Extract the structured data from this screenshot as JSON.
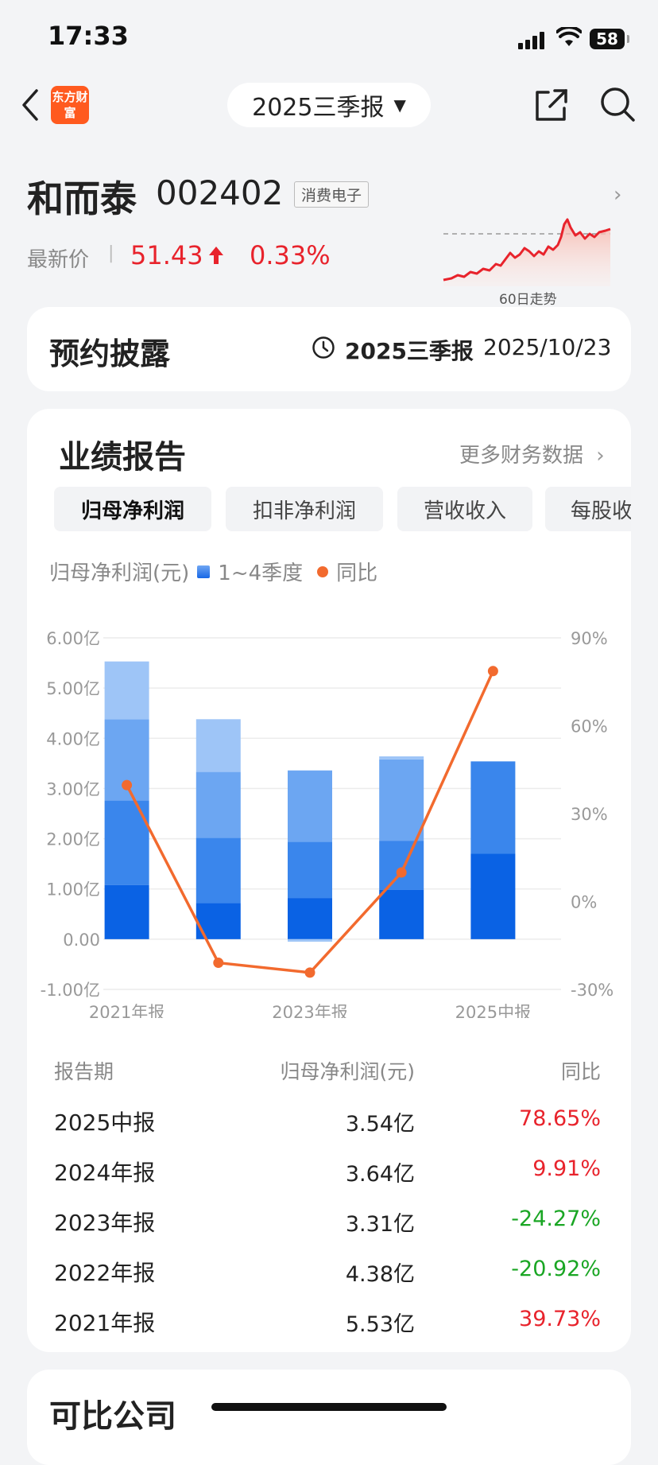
{
  "status_bar": {
    "time": "17:33",
    "battery": "58"
  },
  "nav": {
    "logo_text": "东方财富",
    "period_selector": "2025三季报"
  },
  "stock": {
    "name": "和而泰",
    "code": "002402",
    "sector": "消费电子",
    "latest_label": "最新价",
    "price": "51.43",
    "change_pct": "0.33%",
    "trend_label": "60日走势"
  },
  "disclosure": {
    "title": "预约披露",
    "period": "2025三季报",
    "date": "2025/10/23"
  },
  "performance": {
    "title": "业绩报告",
    "more_link": "更多财务数据",
    "tabs": [
      "归母净利润",
      "扣非净利润",
      "营收收入",
      "每股收益"
    ],
    "legend": {
      "metric": "归母净利润(元)",
      "bars": "1~4季度",
      "line": "同比"
    }
  },
  "chart_data": {
    "type": "bar",
    "categories": [
      "2021年报",
      "2022年报",
      "2023年报",
      "2024年报",
      "2025中报"
    ],
    "x_tick_labels": [
      "2021年报",
      "2023年报",
      "2025中报"
    ],
    "stacked": true,
    "series": [
      {
        "name": "Q1",
        "values": [
          1.08,
          0.72,
          0.82,
          0.98,
          1.7
        ]
      },
      {
        "name": "Q2",
        "values": [
          1.68,
          1.3,
          1.12,
          0.98,
          1.84
        ]
      },
      {
        "name": "Q3",
        "values": [
          1.62,
          1.31,
          1.42,
          1.62,
          0
        ]
      },
      {
        "name": "Q4",
        "values": [
          1.15,
          1.05,
          -0.05,
          0.06,
          0
        ]
      },
      {
        "name": "同比",
        "type": "line",
        "axis": "right",
        "values": [
          39.73,
          -20.92,
          -24.27,
          9.91,
          78.65
        ]
      }
    ],
    "y_left_ticks": [
      "6.00亿",
      "5.00亿",
      "4.00亿",
      "3.00亿",
      "2.00亿",
      "1.00亿",
      "0.00",
      "-1.00亿"
    ],
    "y_right_ticks": [
      "90%",
      "60%",
      "30%",
      "0%",
      "-30%"
    ],
    "ylim": [
      -1,
      6
    ],
    "y2lim": [
      -30,
      90
    ],
    "colors": {
      "q1": "#0a62e4",
      "q2": "#3a86ec",
      "q3": "#6ca6f2",
      "q4": "#9ec5f7",
      "line": "#f26a2e"
    }
  },
  "table": {
    "headers": {
      "period": "报告期",
      "value": "归母净利润(元)",
      "yoy": "同比"
    },
    "rows": [
      {
        "period": "2025中报",
        "value": "3.54亿",
        "yoy": "78.65%",
        "dir": "pos"
      },
      {
        "period": "2024年报",
        "value": "3.64亿",
        "yoy": "9.91%",
        "dir": "pos"
      },
      {
        "period": "2023年报",
        "value": "3.31亿",
        "yoy": "-24.27%",
        "dir": "neg"
      },
      {
        "period": "2022年报",
        "value": "4.38亿",
        "yoy": "-20.92%",
        "dir": "neg"
      },
      {
        "period": "2021年报",
        "value": "5.53亿",
        "yoy": "39.73%",
        "dir": "pos"
      }
    ]
  },
  "comparable": {
    "title": "可比公司"
  }
}
